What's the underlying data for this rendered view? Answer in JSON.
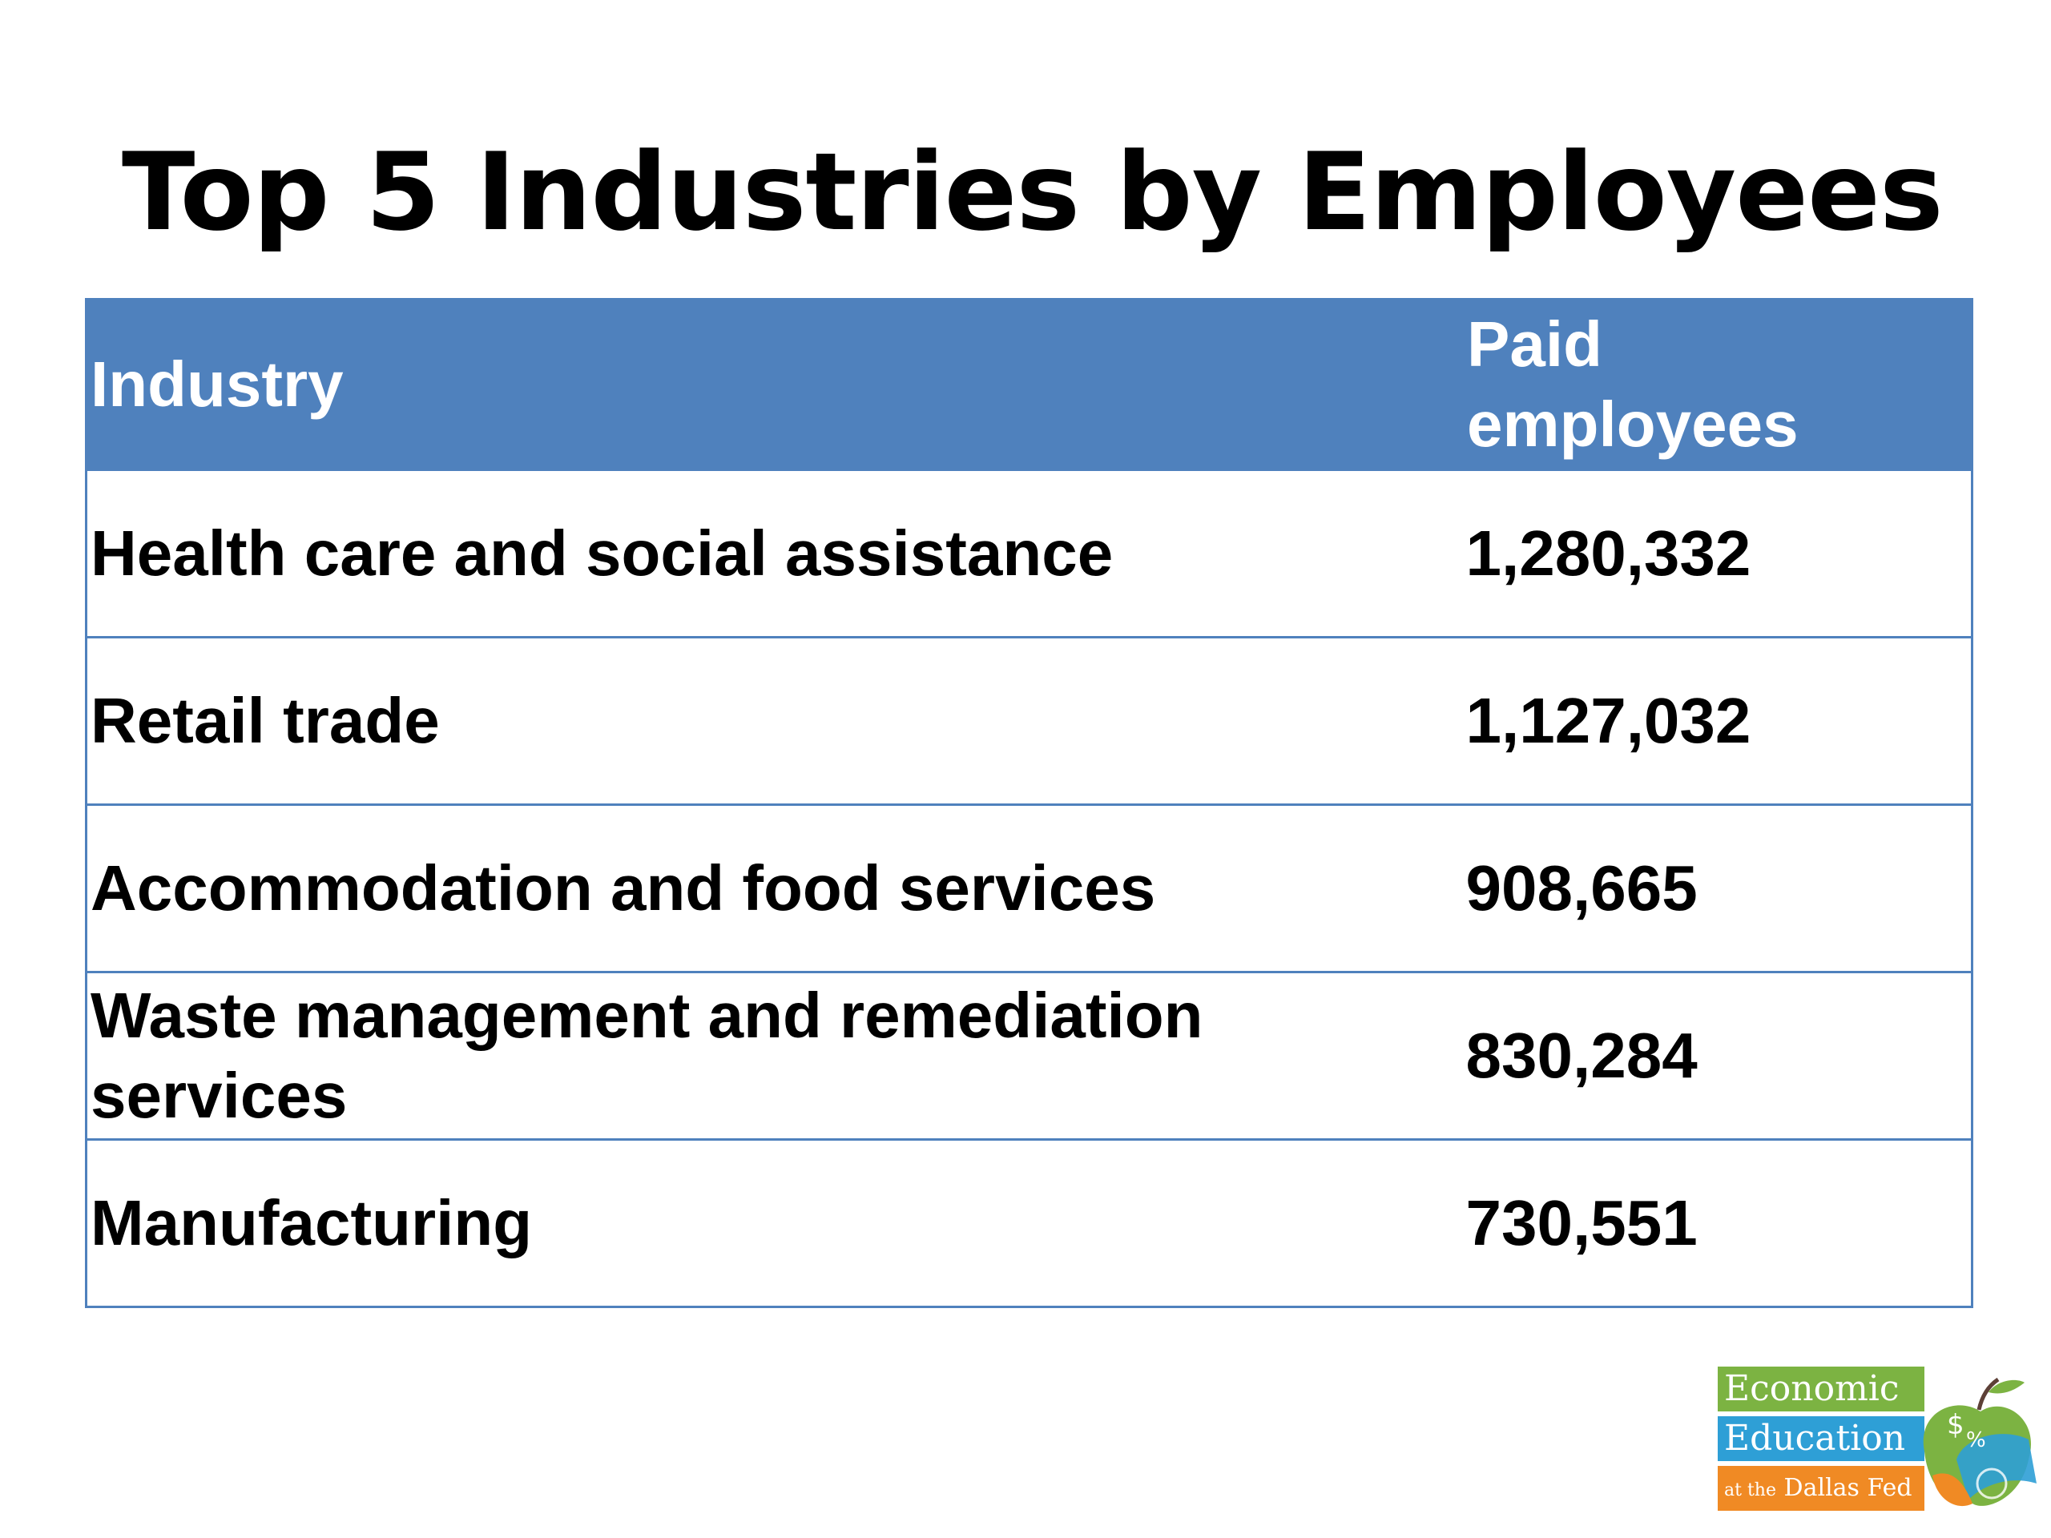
{
  "title": "Top 5 Industries by Employees",
  "table": {
    "headers": {
      "industry": "Industry",
      "employees": "Paid employees"
    },
    "rows": [
      {
        "industry": "Health care and social assistance",
        "employees": "1,280,332"
      },
      {
        "industry": "Retail trade",
        "employees": "1,127,032"
      },
      {
        "industry": "Accommodation and food services",
        "employees": "908,665"
      },
      {
        "industry": "Waste management and remediation services",
        "employees": "830,284"
      },
      {
        "industry": "Manufacturing",
        "employees": "730,551"
      }
    ]
  },
  "logo": {
    "line1": "Economic",
    "line2": "Education",
    "line3_prefix": "at the",
    "line3": "Dallas Fed"
  },
  "colors": {
    "header_bg": "#4f81bd",
    "border": "#4f81bd",
    "logo_green": "#7cb342",
    "logo_blue": "#2e9fd6",
    "logo_orange": "#f08a24"
  }
}
